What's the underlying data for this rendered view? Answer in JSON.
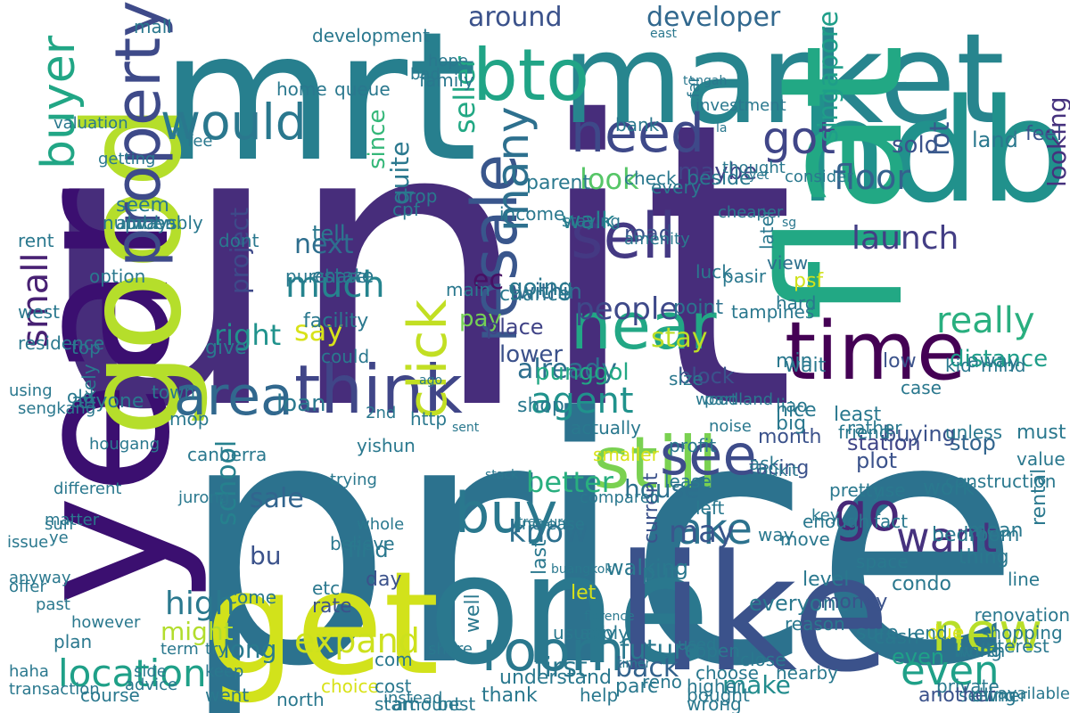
{
  "words": [
    {
      "text": "unit",
      "color": "#472d7b"
    },
    {
      "text": "price",
      "color": "#2c728e"
    },
    {
      "text": "year",
      "color": "#3b0f70"
    },
    {
      "text": "mrt",
      "color": "#277f8e"
    },
    {
      "text": "market",
      "color": "#27858e"
    },
    {
      "text": "hdb",
      "color": "#21918c"
    },
    {
      "text": "flat",
      "color": "#22a884"
    },
    {
      "text": "good",
      "color": "#b5de2b"
    },
    {
      "text": "get",
      "color": "#d2e21b"
    },
    {
      "text": "one",
      "color": "#2a788e"
    },
    {
      "text": "like",
      "color": "#3b528b"
    },
    {
      "text": "time",
      "color": "#440154"
    },
    {
      "text": "think",
      "color": "#404688"
    },
    {
      "text": "still",
      "color": "#7ad151"
    },
    {
      "text": "area",
      "color": "#31688e"
    },
    {
      "text": "property",
      "color": "#3e4a89"
    },
    {
      "text": "buyer",
      "color": "#21a685"
    },
    {
      "text": "would",
      "color": "#2a788e"
    },
    {
      "text": "bto",
      "color": "#20a486"
    },
    {
      "text": "need",
      "color": "#3e4989"
    },
    {
      "text": "sell",
      "color": "#443983"
    },
    {
      "text": "near",
      "color": "#22a785"
    },
    {
      "text": "got",
      "color": "#404688"
    },
    {
      "text": "resale",
      "color": "#39568c"
    },
    {
      "text": "go",
      "color": "#482878"
    },
    {
      "text": "see",
      "color": "#3e4c8a"
    },
    {
      "text": "buy",
      "color": "#2a788e"
    },
    {
      "text": "room",
      "color": "#2a788e"
    },
    {
      "text": "new",
      "color": "#b8de29"
    },
    {
      "text": "even",
      "color": "#1fa088"
    },
    {
      "text": "take",
      "color": "#2c728e"
    },
    {
      "text": "want",
      "color": "#46327e"
    },
    {
      "text": "expand",
      "color": "#cde11d"
    },
    {
      "text": "location",
      "color": "#1fa088"
    },
    {
      "text": "agent",
      "color": "#20928c"
    },
    {
      "text": "click",
      "color": "#c2df23"
    },
    {
      "text": "many",
      "color": "#2d708e"
    },
    {
      "text": "small",
      "color": "#482173"
    },
    {
      "text": "much",
      "color": "#25848e"
    },
    {
      "text": "people",
      "color": "#3e4989"
    },
    {
      "text": "launch",
      "color": "#433e85"
    },
    {
      "text": "floor",
      "color": "#34618d"
    },
    {
      "text": "really",
      "color": "#29af7f"
    },
    {
      "text": "around",
      "color": "#3b528b"
    },
    {
      "text": "developer",
      "color": "#31688e"
    },
    {
      "text": "look",
      "color": "#56c667"
    },
    {
      "text": "already",
      "color": "#2e6f8e"
    },
    {
      "text": "may",
      "color": "#39568c"
    },
    {
      "text": "know",
      "color": "#2d708e"
    },
    {
      "text": "first",
      "color": "#2a788e"
    },
    {
      "text": "better",
      "color": "#29af7f"
    },
    {
      "text": "house",
      "color": "#2d708e"
    },
    {
      "text": "high",
      "color": "#2a788e"
    },
    {
      "text": "school",
      "color": "#26818e"
    },
    {
      "text": "project",
      "color": "#3e4989"
    },
    {
      "text": "right",
      "color": "#20928c"
    },
    {
      "text": "say",
      "color": "#d8e219"
    },
    {
      "text": "next",
      "color": "#2e6e8e"
    },
    {
      "text": "ec",
      "color": "#471063"
    },
    {
      "text": "stay",
      "color": "#bddf26"
    },
    {
      "text": "back",
      "color": "#33638d"
    },
    {
      "text": "future",
      "color": "#2a788e"
    },
    {
      "text": "make",
      "color": "#228c8d"
    },
    {
      "text": "even",
      "color": "#1fa088"
    },
    {
      "text": "loan",
      "color": "#2a788e"
    },
    {
      "text": "sale",
      "color": "#32658e"
    },
    {
      "text": "bu",
      "color": "#3b528b"
    },
    {
      "text": "might",
      "color": "#b2dd2d"
    },
    {
      "text": "long",
      "color": "#29798e"
    },
    {
      "text": "punggol",
      "color": "#22a884"
    },
    {
      "text": "within",
      "color": "#306a8e"
    },
    {
      "text": "pay",
      "color": "#75d054"
    },
    {
      "text": "place",
      "color": "#414487"
    },
    {
      "text": "lower",
      "color": "#3b518b"
    },
    {
      "text": "walk",
      "color": "#25848e"
    },
    {
      "text": "road",
      "color": "#3b528b"
    },
    {
      "text": "going",
      "color": "#2a788e"
    },
    {
      "text": "quite",
      "color": "#2a788e"
    },
    {
      "text": "since",
      "color": "#35b779"
    },
    {
      "text": "seller",
      "color": "#22a884"
    },
    {
      "text": "point",
      "color": "#2c728e"
    },
    {
      "text": "view",
      "color": "#2d708e"
    },
    {
      "text": "wait",
      "color": "#2a788e"
    },
    {
      "text": "maybe",
      "color": "#414487"
    },
    {
      "text": "sold",
      "color": "#3b528b"
    },
    {
      "text": "land",
      "color": "#2a788e"
    },
    {
      "text": "feel",
      "color": "#3b528b"
    },
    {
      "text": "lot",
      "color": "#38598c"
    },
    {
      "text": "looking",
      "color": "#46327e"
    },
    {
      "text": "singapore",
      "color": "#1f9e89"
    },
    {
      "text": "work",
      "color": "#2a788e"
    },
    {
      "text": "stop",
      "color": "#32658e"
    },
    {
      "text": "away",
      "color": "#2a788e"
    },
    {
      "text": "distance",
      "color": "#1f9e89"
    },
    {
      "text": "psf",
      "color": "#d0e11c"
    },
    {
      "text": "low",
      "color": "#3b528b"
    },
    {
      "text": "case",
      "color": "#2a788e"
    },
    {
      "text": "min",
      "color": "#2a788e"
    },
    {
      "text": "nice",
      "color": "#2a788e"
    },
    {
      "text": "least",
      "color": "#2a788e"
    },
    {
      "text": "month",
      "color": "#3b528b"
    },
    {
      "text": "station",
      "color": "#404688"
    },
    {
      "text": "level",
      "color": "#2a788e"
    },
    {
      "text": "condo",
      "color": "#2a788e"
    },
    {
      "text": "space",
      "color": "#2a788e"
    },
    {
      "text": "plot",
      "color": "#3b528b"
    },
    {
      "text": "buying",
      "color": "#3b528b"
    },
    {
      "text": "unless",
      "color": "#2a788e"
    },
    {
      "text": "must",
      "color": "#2a788e"
    },
    {
      "text": "fact",
      "color": "#2a788e"
    },
    {
      "text": "mean",
      "color": "#2a788e"
    },
    {
      "text": "rental",
      "color": "#2a788e"
    },
    {
      "text": "value",
      "color": "#2a788e"
    },
    {
      "text": "use",
      "color": "#2a788e"
    },
    {
      "text": "enough",
      "color": "#2a788e"
    },
    {
      "text": "move",
      "color": "#2a788e"
    },
    {
      "text": "everyone",
      "color": "#2a788e"
    },
    {
      "text": "money",
      "color": "#3b528b"
    },
    {
      "text": "reason",
      "color": "#2a788e"
    },
    {
      "text": "put",
      "color": "#2a788e"
    },
    {
      "text": "facing",
      "color": "#3b528b"
    },
    {
      "text": "find",
      "color": "#2a788e"
    },
    {
      "text": "day",
      "color": "#3b528b"
    },
    {
      "text": "let",
      "color": "#d8e219"
    },
    {
      "text": "well",
      "color": "#2a788e"
    },
    {
      "text": "understand",
      "color": "#2a788e"
    },
    {
      "text": "walking",
      "color": "#2a788e"
    },
    {
      "text": "current",
      "color": "#3b528b"
    },
    {
      "text": "last",
      "color": "#2a788e"
    },
    {
      "text": "choice",
      "color": "#d8e219"
    },
    {
      "text": "cost",
      "color": "#2a788e"
    },
    {
      "text": "parc",
      "color": "#2a788e"
    },
    {
      "text": "cash",
      "color": "#2a788e"
    },
    {
      "text": "selling",
      "color": "#2a788e"
    },
    {
      "text": "due",
      "color": "#d8e219"
    },
    {
      "text": "living",
      "color": "#2a788e"
    },
    {
      "text": "private",
      "color": "#2a788e"
    },
    {
      "text": "thing",
      "color": "#2a788e"
    },
    {
      "text": "bedroom",
      "color": "#2a788e"
    },
    {
      "text": "end",
      "color": "#2a788e"
    },
    {
      "text": "sure",
      "color": "#2a788e"
    },
    {
      "text": "close",
      "color": "#2a788e"
    },
    {
      "text": "choose",
      "color": "#2a788e"
    },
    {
      "text": "open",
      "color": "#2a788e"
    },
    {
      "text": "rate",
      "color": "#3b528b"
    },
    {
      "text": "thank",
      "color": "#2a788e"
    },
    {
      "text": "another",
      "color": "#3b528b"
    },
    {
      "text": "owner",
      "color": "#2a788e"
    },
    {
      "text": "help",
      "color": "#2a788e"
    },
    {
      "text": "north",
      "color": "#2a788e"
    },
    {
      "text": "start",
      "color": "#2a788e"
    },
    {
      "text": "best",
      "color": "#2a788e"
    },
    {
      "text": "keep",
      "color": "#2a788e"
    },
    {
      "text": "went",
      "color": "#2a788e"
    },
    {
      "text": "course",
      "color": "#2a788e"
    },
    {
      "text": "transaction",
      "color": "#2a788e"
    },
    {
      "text": "plan",
      "color": "#2a788e"
    },
    {
      "text": "offer",
      "color": "#2a788e"
    },
    {
      "text": "past",
      "color": "#2a788e"
    },
    {
      "text": "different",
      "color": "#2a788e"
    },
    {
      "text": "residence",
      "color": "#2a788e"
    },
    {
      "text": "west",
      "color": "#2a788e"
    },
    {
      "text": "old",
      "color": "#2a788e"
    },
    {
      "text": "top",
      "color": "#2a788e"
    },
    {
      "text": "likely",
      "color": "#2a788e"
    },
    {
      "text": "anyone",
      "color": "#2a788e"
    },
    {
      "text": "canberra",
      "color": "#2a788e"
    },
    {
      "text": "actually",
      "color": "#2a788e"
    },
    {
      "text": "block",
      "color": "#3b528b"
    },
    {
      "text": "smaller",
      "color": "#d8e219"
    },
    {
      "text": "way",
      "color": "#2a788e"
    },
    {
      "text": "ask",
      "color": "#2a788e"
    },
    {
      "text": "big",
      "color": "#2a788e"
    },
    {
      "text": "friend",
      "color": "#2a788e"
    },
    {
      "text": "pretty",
      "color": "#2a788e"
    },
    {
      "text": "rather",
      "color": "#2a788e"
    },
    {
      "text": "tell",
      "color": "#2a788e"
    },
    {
      "text": "estate",
      "color": "#2a788e"
    },
    {
      "text": "chance",
      "color": "#2a788e"
    },
    {
      "text": "parent",
      "color": "#2a788e"
    },
    {
      "text": "bank",
      "color": "#2a788e"
    },
    {
      "text": "check",
      "color": "#2a788e"
    },
    {
      "text": "every",
      "color": "#2a788e"
    },
    {
      "text": "family",
      "color": "#2a788e"
    },
    {
      "text": "bad",
      "color": "#2a788e"
    },
    {
      "text": "hope",
      "color": "#2a788e"
    },
    {
      "text": "queue",
      "color": "#2a788e"
    },
    {
      "text": "home",
      "color": "#2a788e"
    },
    {
      "text": "mall",
      "color": "#2a788e"
    },
    {
      "text": "development",
      "color": "#2a788e"
    },
    {
      "text": "purchase",
      "color": "#2a788e"
    },
    {
      "text": "fee",
      "color": "#2a788e"
    },
    {
      "text": "getting",
      "color": "#2a788e"
    },
    {
      "text": "seem",
      "color": "#2a788e"
    },
    {
      "text": "probably",
      "color": "#2a788e"
    },
    {
      "text": "drop",
      "color": "#2a788e"
    },
    {
      "text": "cpf",
      "color": "#2a788e"
    },
    {
      "text": "income",
      "color": "#2a788e"
    },
    {
      "text": "investment",
      "color": "#2a788e"
    },
    {
      "text": "far",
      "color": "#2a788e"
    },
    {
      "text": "facility",
      "color": "#2a788e"
    },
    {
      "text": "option",
      "color": "#2a788e"
    },
    {
      "text": "valuation",
      "color": "#2a788e"
    },
    {
      "text": "number",
      "color": "#2a788e"
    },
    {
      "text": "always",
      "color": "#2a788e"
    },
    {
      "text": "rent",
      "color": "#2a788e"
    },
    {
      "text": "dont",
      "color": "#2a788e"
    },
    {
      "text": "could",
      "color": "#2a788e"
    },
    {
      "text": "http",
      "color": "#2a788e"
    },
    {
      "text": "town",
      "color": "#2a788e"
    },
    {
      "text": "mop",
      "color": "#2a788e"
    },
    {
      "text": "give",
      "color": "#2a788e"
    },
    {
      "text": "later",
      "color": "#2a788e"
    },
    {
      "text": "tampines",
      "color": "#2a788e"
    },
    {
      "text": "pasir",
      "color": "#2a788e"
    },
    {
      "text": "luck",
      "color": "#2a788e"
    },
    {
      "text": "hard",
      "color": "#2a788e"
    },
    {
      "text": "liao",
      "color": "#2a788e"
    },
    {
      "text": "profit",
      "color": "#2a788e"
    },
    {
      "text": "lease",
      "color": "#2a788e"
    },
    {
      "text": "left",
      "color": "#2a788e"
    },
    {
      "text": "beside",
      "color": "#2a788e"
    },
    {
      "text": "shop",
      "color": "#2a788e"
    },
    {
      "text": "size",
      "color": "#2a788e"
    },
    {
      "text": "main",
      "color": "#2a788e"
    },
    {
      "text": "yishun",
      "color": "#2a788e"
    },
    {
      "text": "amount",
      "color": "#2a788e"
    },
    {
      "text": "instead",
      "color": "#2a788e"
    },
    {
      "text": "believe",
      "color": "#2a788e"
    },
    {
      "text": "com",
      "color": "#2a788e"
    },
    {
      "text": "share",
      "color": "#2a788e"
    },
    {
      "text": "apply",
      "color": "#2a788e"
    },
    {
      "text": "used",
      "color": "#2a788e"
    },
    {
      "text": "reno",
      "color": "#2a788e"
    },
    {
      "text": "usually",
      "color": "#2a788e"
    },
    {
      "text": "higher",
      "color": "#2a788e"
    },
    {
      "text": "bought",
      "color": "#2a788e"
    },
    {
      "text": "wrong",
      "color": "#2a788e"
    },
    {
      "text": "nearby",
      "color": "#2a788e"
    },
    {
      "text": "worth",
      "color": "#2a788e"
    },
    {
      "text": "line",
      "color": "#2a788e"
    },
    {
      "text": "available",
      "color": "#2a788e"
    },
    {
      "text": "interest",
      "color": "#2a788e"
    },
    {
      "text": "renovation",
      "color": "#2a788e"
    },
    {
      "text": "shopping",
      "color": "#2a788e"
    },
    {
      "text": "construction",
      "color": "#2a788e"
    },
    {
      "text": "mind",
      "color": "#2a788e"
    },
    {
      "text": "kid",
      "color": "#2a788e"
    },
    {
      "text": "matter",
      "color": "#2a788e"
    },
    {
      "text": "try",
      "color": "#2a788e"
    },
    {
      "text": "term",
      "color": "#2a788e"
    },
    {
      "text": "come",
      "color": "#2a788e"
    },
    {
      "text": "etc",
      "color": "#2a788e"
    },
    {
      "text": "anyway",
      "color": "#2a788e"
    },
    {
      "text": "advice",
      "color": "#2a788e"
    },
    {
      "text": "haha",
      "color": "#2a788e"
    },
    {
      "text": "however",
      "color": "#2a788e"
    },
    {
      "text": "trying",
      "color": "#2a788e"
    },
    {
      "text": "sun",
      "color": "#2a788e"
    },
    {
      "text": "ye",
      "color": "#2a788e"
    },
    {
      "text": "issue",
      "color": "#2a788e"
    },
    {
      "text": "side",
      "color": "#2a788e"
    },
    {
      "text": "part",
      "color": "#2a788e"
    },
    {
      "text": "noise",
      "color": "#2a788e"
    },
    {
      "text": "bukit",
      "color": "#2a788e"
    },
    {
      "text": "key",
      "color": "#2a788e"
    },
    {
      "text": "woodland",
      "color": "#2a788e"
    },
    {
      "text": "2nd",
      "color": "#2a788e"
    },
    {
      "text": "using",
      "color": "#2a788e"
    },
    {
      "text": "sengkang",
      "color": "#2a788e"
    },
    {
      "text": "jurong",
      "color": "#2a788e"
    },
    {
      "text": "hougang",
      "color": "#2a788e"
    },
    {
      "text": "whole",
      "color": "#2a788e"
    },
    {
      "text": "increase",
      "color": "#2a788e"
    },
    {
      "text": "compared",
      "color": "#2a788e"
    },
    {
      "text": "staying",
      "color": "#2a788e"
    },
    {
      "text": "amenity",
      "color": "#2a788e"
    },
    {
      "text": "cheaper",
      "color": "#2a788e"
    },
    {
      "text": "thought",
      "color": "#2a788e"
    },
    {
      "text": "consider",
      "color": "#2a788e"
    },
    {
      "text": "ago",
      "color": "#2a788e"
    },
    {
      "text": "sent",
      "color": "#2a788e"
    },
    {
      "text": "stack",
      "color": "#2a788e"
    },
    {
      "text": "treasure",
      "color": "#2a788e"
    },
    {
      "text": "buangkok",
      "color": "#2a788e"
    },
    {
      "text": "florence",
      "color": "#2a788e"
    },
    {
      "text": "timer",
      "color": "#2a788e"
    },
    {
      "text": "east",
      "color": "#2a788e"
    },
    {
      "text": "tengah",
      "color": "#2a788e"
    },
    {
      "text": "la",
      "color": "#2a788e"
    },
    {
      "text": "yet",
      "color": "#2a788e"
    },
    {
      "text": "sg",
      "color": "#2a788e"
    }
  ]
}
